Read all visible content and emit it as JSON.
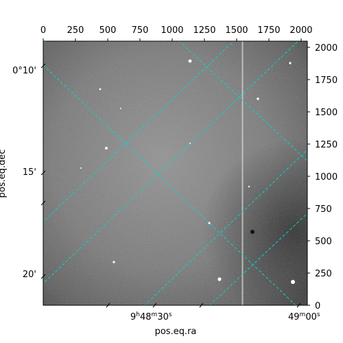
{
  "figure": {
    "x_axis_bottom_label": "pos.eq.ra",
    "y_axis_left_label": "pos.eq.dec",
    "top_pixel_ticks": [
      "0",
      "250",
      "500",
      "750",
      "1000",
      "1250",
      "1500",
      "1750",
      "2000"
    ],
    "right_pixel_ticks": [
      "0",
      "250",
      "500",
      "750",
      "1000",
      "1250",
      "1500",
      "1750",
      "2000"
    ],
    "ra_ticks": [
      {
        "label": "9h48m30s",
        "h": "9",
        "m": "48",
        "s": "30"
      },
      {
        "label": "49m00s",
        "m": "49",
        "s": "00"
      }
    ],
    "dec_ticks": [
      "0°10'",
      "15'",
      "20'"
    ],
    "grid_color": "#00d8d8",
    "image_colormap": "gray"
  }
}
